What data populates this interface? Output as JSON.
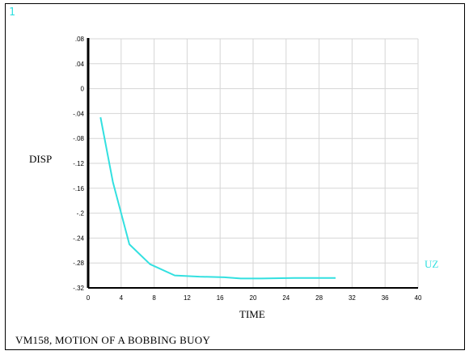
{
  "window_number": "1",
  "footer_title": "VM158, MOTION OF A BOBBING BUOY",
  "chart_data": {
    "type": "line",
    "title": "",
    "xlabel": "TIME",
    "ylabel": "DISP",
    "xlim": [
      0,
      40
    ],
    "ylim": [
      -0.32,
      0.08
    ],
    "grid": true,
    "x_ticks": [
      0,
      4,
      8,
      12,
      16,
      20,
      24,
      28,
      32,
      36,
      40
    ],
    "x_tick_labels": [
      "0",
      "4",
      "8",
      "12",
      "16",
      "20",
      "24",
      "28",
      "32",
      "36",
      "40"
    ],
    "y_ticks": [
      0.08,
      0.04,
      0,
      -0.04,
      -0.08,
      -0.12,
      -0.16,
      -0.2,
      -0.24,
      -0.28,
      -0.32
    ],
    "y_tick_labels": [
      ".08",
      ".04",
      "0",
      "-.04",
      "-.08",
      "-.12",
      "-.16",
      "-.2",
      "-.24",
      "-.28",
      "-.32"
    ],
    "series_color": "#33e0e0",
    "series": [
      {
        "name": "UZ",
        "x": [
          1.5,
          3.0,
          5.0,
          7.5,
          10.5,
          13.5,
          16.5,
          18.5,
          21.0,
          25.0,
          30.0
        ],
        "values": [
          -0.046,
          -0.15,
          -0.25,
          -0.282,
          -0.3,
          -0.302,
          -0.303,
          -0.305,
          -0.305,
          -0.304,
          -0.304
        ]
      }
    ]
  }
}
